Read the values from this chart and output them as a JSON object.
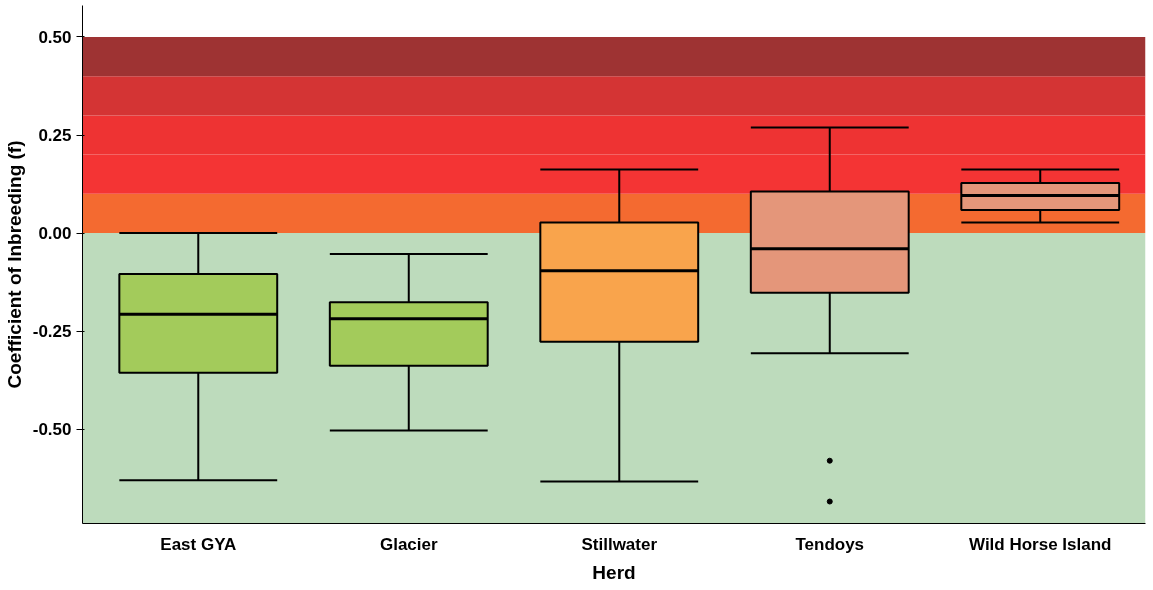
{
  "chart_data": {
    "type": "box",
    "xlabel": "Herd",
    "ylabel": "Coefficient of Inbreeding (f)",
    "categories": [
      "East GYA",
      "Glacier",
      "Stillwater",
      "Tendoys",
      "Wild Horse Island"
    ],
    "colors": [
      "#a3cb5b",
      "#a3cb5b",
      "#f9a44c",
      "#e4967a",
      "#e4967a"
    ],
    "boxes": [
      {
        "low": -0.63,
        "q1": -0.356,
        "median": -0.207,
        "q3": -0.104,
        "high": 0.0
      },
      {
        "low": -0.503,
        "q1": -0.338,
        "median": -0.218,
        "q3": -0.176,
        "high": -0.053
      },
      {
        "low": -0.633,
        "q1": -0.277,
        "median": -0.096,
        "q3": 0.027,
        "high": 0.162
      },
      {
        "low": -0.306,
        "q1": -0.152,
        "median": -0.04,
        "q3": 0.106,
        "high": 0.269,
        "outliers": [
          -0.58,
          -0.684
        ]
      },
      {
        "low": 0.027,
        "q1": 0.059,
        "median": 0.096,
        "q3": 0.128,
        "high": 0.162
      }
    ],
    "ylim": [
      -0.74,
      0.58
    ],
    "yticks": [
      {
        "value": -0.5,
        "label": "-0.50"
      },
      {
        "value": -0.25,
        "label": "-0.25"
      },
      {
        "value": 0,
        "label": "0.00"
      },
      {
        "value": 0.25,
        "label": "0.25"
      },
      {
        "value": 0.5,
        "label": "0.50"
      }
    ],
    "grid": false,
    "bands": [
      {
        "axis": "y",
        "from": -0.74,
        "to": 0,
        "color": "#bddbbc"
      },
      {
        "axis": "y",
        "from": 0,
        "to": 0.1,
        "color": "#f46a30"
      },
      {
        "axis": "y",
        "from": 0.1,
        "to": 0.2,
        "color": "#f43434"
      },
      {
        "axis": "y",
        "from": 0.2,
        "to": 0.3,
        "color": "#ee3333"
      },
      {
        "axis": "y",
        "from": 0.3,
        "to": 0.4,
        "color": "#d43434"
      },
      {
        "axis": "y",
        "from": 0.4,
        "to": 0.5,
        "color": "#9e3333"
      }
    ]
  }
}
